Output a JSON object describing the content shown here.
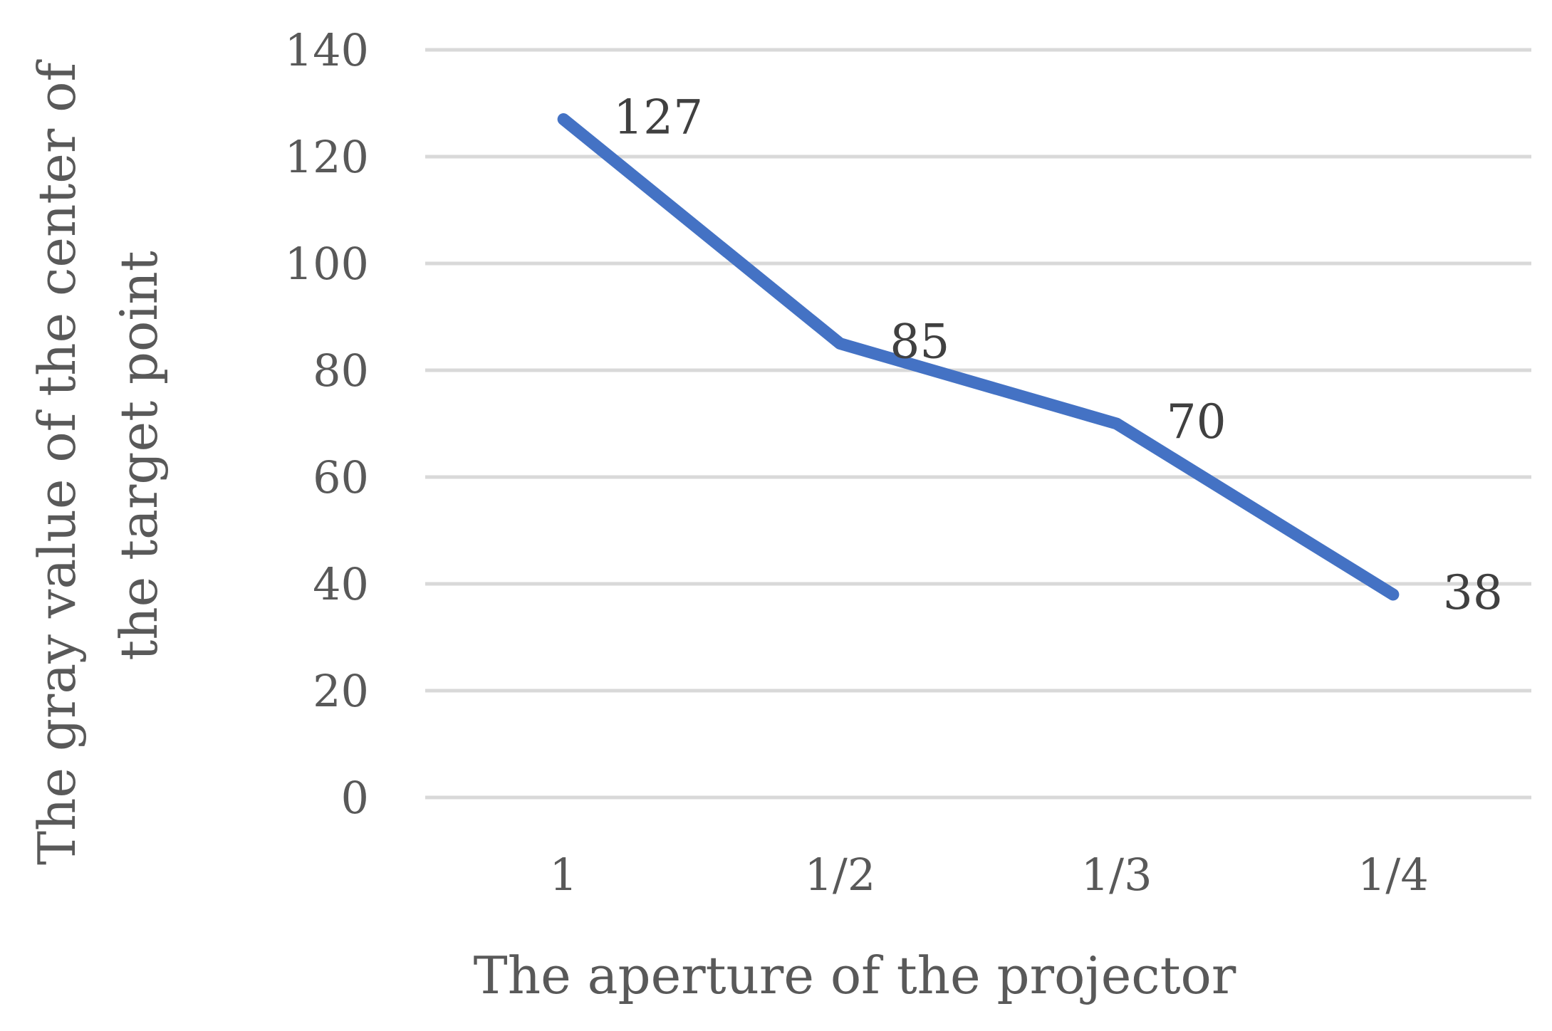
{
  "chart_data": {
    "type": "line",
    "categories": [
      "1",
      "1/2",
      "1/3",
      "1/4"
    ],
    "series": [
      {
        "values": [
          127,
          85,
          70,
          38
        ],
        "color": "#4472c4"
      }
    ],
    "data_labels": [
      "127",
      "85",
      "70",
      "38"
    ],
    "xlabel": "The aperture of the projector",
    "ylabel_lines": [
      "The gray value of the center of",
      "the target point"
    ],
    "ylim": [
      0,
      140
    ],
    "yticks": [
      0,
      20,
      40,
      60,
      80,
      100,
      120,
      140
    ],
    "grid": true,
    "legend": "none"
  }
}
